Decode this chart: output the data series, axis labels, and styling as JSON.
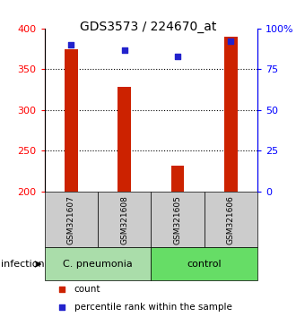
{
  "title": "GDS3573 / 224670_at",
  "samples": [
    "GSM321607",
    "GSM321608",
    "GSM321605",
    "GSM321606"
  ],
  "bar_values": [
    375,
    328,
    232,
    390
  ],
  "percentile_values": [
    90,
    87,
    83,
    92
  ],
  "bar_color": "#cc2200",
  "percentile_color": "#2222cc",
  "ylim_left": [
    200,
    400
  ],
  "ylim_right": [
    0,
    100
  ],
  "yticks_left": [
    200,
    250,
    300,
    350,
    400
  ],
  "yticks_right": [
    0,
    25,
    50,
    75,
    100
  ],
  "ytick_labels_right": [
    "0",
    "25",
    "50",
    "75",
    "100%"
  ],
  "groups": [
    {
      "label": "C. pneumonia",
      "indices": [
        0,
        1
      ],
      "color": "#aaddaa"
    },
    {
      "label": "control",
      "indices": [
        2,
        3
      ],
      "color": "#66dd66"
    }
  ],
  "group_label": "infection",
  "legend_items": [
    {
      "color": "#cc2200",
      "label": "count"
    },
    {
      "color": "#2222cc",
      "label": "percentile rank within the sample"
    }
  ],
  "bar_width": 0.25,
  "sample_box_color": "#cccccc",
  "background_color": "#ffffff"
}
